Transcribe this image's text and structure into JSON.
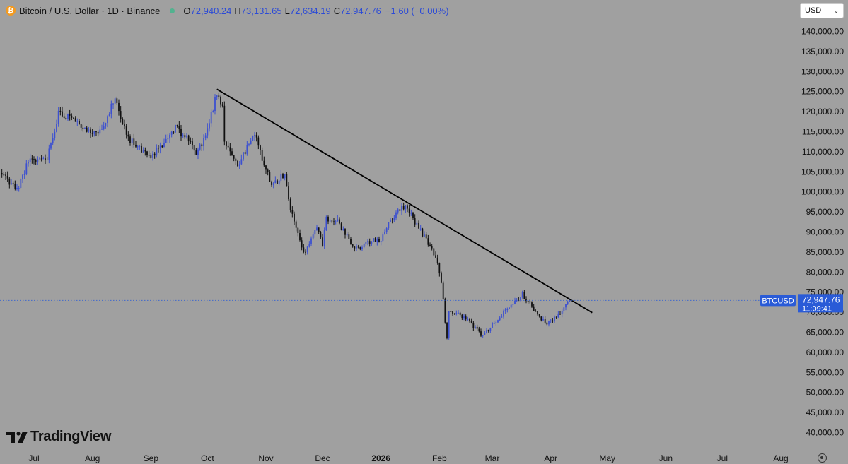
{
  "legend": {
    "symbol_name": "Bitcoin / U.S. Dollar · 1D · Binance",
    "open_label": "O",
    "open": "72,940.24",
    "high_label": "H",
    "high": "73,131.65",
    "low_label": "L",
    "low": "72,634.19",
    "close_label": "C",
    "close": "72,947.76",
    "change": "−1.60 (−0.00%)"
  },
  "currency": "USD",
  "brand": "TradingView",
  "price_tag": {
    "ticker": "BTCUSD",
    "price": "72,947.76",
    "countdown": "11:09:41"
  },
  "colors": {
    "background": "#a0a0a0",
    "up_candle": "#3c50d0",
    "down_candle": "#101010",
    "trendline": "#000000",
    "price_tag": "#2a5bd7"
  },
  "chart_data": {
    "type": "candlestick",
    "title": "Bitcoin / U.S. Dollar · 1D · Binance",
    "grid": false,
    "ylim": [
      35500,
      144500
    ],
    "y_ticks": [
      40000,
      45000,
      50000,
      55000,
      60000,
      65000,
      70000,
      75000,
      80000,
      85000,
      90000,
      95000,
      100000,
      105000,
      110000,
      115000,
      120000,
      125000,
      130000,
      135000,
      140000
    ],
    "y_tick_labels": [
      "40,000.00",
      "45,000.00",
      "50,000.00",
      "55,000.00",
      "60,000.00",
      "65,000.00",
      "70,000.00",
      "75,000.00",
      "80,000.00",
      "85,000.00",
      "90,000.00",
      "95,000.00",
      "100,000.00",
      "105,000.00",
      "110,000.00",
      "115,000.00",
      "120,000.00",
      "125,000.00",
      "130,000.00",
      "135,000.00",
      "140,000.00"
    ],
    "x_ticks": [
      {
        "label": "Jul",
        "date": "2025-07-01",
        "bold": false
      },
      {
        "label": "Aug",
        "date": "2025-08-01",
        "bold": false
      },
      {
        "label": "Sep",
        "date": "2025-09-01",
        "bold": false
      },
      {
        "label": "Oct",
        "date": "2025-10-01",
        "bold": false
      },
      {
        "label": "Nov",
        "date": "2025-11-01",
        "bold": false
      },
      {
        "label": "Dec",
        "date": "2025-12-01",
        "bold": false
      },
      {
        "label": "2026",
        "date": "2026-01-01",
        "bold": true
      },
      {
        "label": "Feb",
        "date": "2026-02-01",
        "bold": false
      },
      {
        "label": "Mar",
        "date": "2026-03-01",
        "bold": false
      },
      {
        "label": "Apr",
        "date": "2026-04-01",
        "bold": false
      },
      {
        "label": "May",
        "date": "2026-05-01",
        "bold": false
      },
      {
        "label": "Jun",
        "date": "2026-06-01",
        "bold": false
      },
      {
        "label": "Jul",
        "date": "2026-07-01",
        "bold": false
      },
      {
        "label": "Aug",
        "date": "2026-08-01",
        "bold": false
      }
    ],
    "last_price": 72947.76,
    "trendline": {
      "start": {
        "date": "2025-10-06",
        "price": 125600
      },
      "end": {
        "date": "2026-04-23",
        "price": 69900
      }
    },
    "close_anchors": [
      {
        "date": "2025-06-10",
        "close": 106500
      },
      {
        "date": "2025-06-22",
        "close": 100500
      },
      {
        "date": "2025-06-28",
        "close": 107500
      },
      {
        "date": "2025-07-08",
        "close": 108500
      },
      {
        "date": "2025-07-14",
        "close": 119500
      },
      {
        "date": "2025-07-22",
        "close": 118800
      },
      {
        "date": "2025-08-01",
        "close": 113800
      },
      {
        "date": "2025-08-07",
        "close": 117000
      },
      {
        "date": "2025-08-13",
        "close": 123300
      },
      {
        "date": "2025-08-20",
        "close": 113500
      },
      {
        "date": "2025-08-31",
        "close": 108300
      },
      {
        "date": "2025-09-08",
        "close": 112000
      },
      {
        "date": "2025-09-14",
        "close": 116000
      },
      {
        "date": "2025-09-22",
        "close": 112600
      },
      {
        "date": "2025-09-25",
        "close": 109300
      },
      {
        "date": "2025-09-30",
        "close": 114000
      },
      {
        "date": "2025-10-06",
        "close": 124700
      },
      {
        "date": "2025-10-09",
        "close": 121500
      },
      {
        "date": "2025-10-10",
        "close": 113000
      },
      {
        "date": "2025-10-17",
        "close": 106500
      },
      {
        "date": "2025-10-26",
        "close": 114500
      },
      {
        "date": "2025-10-30",
        "close": 108500
      },
      {
        "date": "2025-11-04",
        "close": 101500
      },
      {
        "date": "2025-11-11",
        "close": 104500
      },
      {
        "date": "2025-11-14",
        "close": 95500
      },
      {
        "date": "2025-11-21",
        "close": 84500
      },
      {
        "date": "2025-11-28",
        "close": 91400
      },
      {
        "date": "2025-12-01",
        "close": 87000
      },
      {
        "date": "2025-12-03",
        "close": 93400
      },
      {
        "date": "2025-12-09",
        "close": 92700
      },
      {
        "date": "2025-12-18",
        "close": 85500
      },
      {
        "date": "2025-12-25",
        "close": 87500
      },
      {
        "date": "2026-01-01",
        "close": 88200
      },
      {
        "date": "2026-01-05",
        "close": 92500
      },
      {
        "date": "2026-01-14",
        "close": 96900
      },
      {
        "date": "2026-01-19",
        "close": 92600
      },
      {
        "date": "2026-01-25",
        "close": 88000
      },
      {
        "date": "2026-01-30",
        "close": 84000
      },
      {
        "date": "2026-02-02",
        "close": 77500
      },
      {
        "date": "2026-02-05",
        "close": 63000
      },
      {
        "date": "2026-02-06",
        "close": 70500
      },
      {
        "date": "2026-02-14",
        "close": 68800
      },
      {
        "date": "2026-02-24",
        "close": 64000
      },
      {
        "date": "2026-03-04",
        "close": 68500
      },
      {
        "date": "2026-03-10",
        "close": 71000
      },
      {
        "date": "2026-03-17",
        "close": 74500
      },
      {
        "date": "2026-03-24",
        "close": 70000
      },
      {
        "date": "2026-03-30",
        "close": 67000
      },
      {
        "date": "2026-04-06",
        "close": 69500
      },
      {
        "date": "2026-04-11",
        "close": 72947.76
      }
    ]
  }
}
